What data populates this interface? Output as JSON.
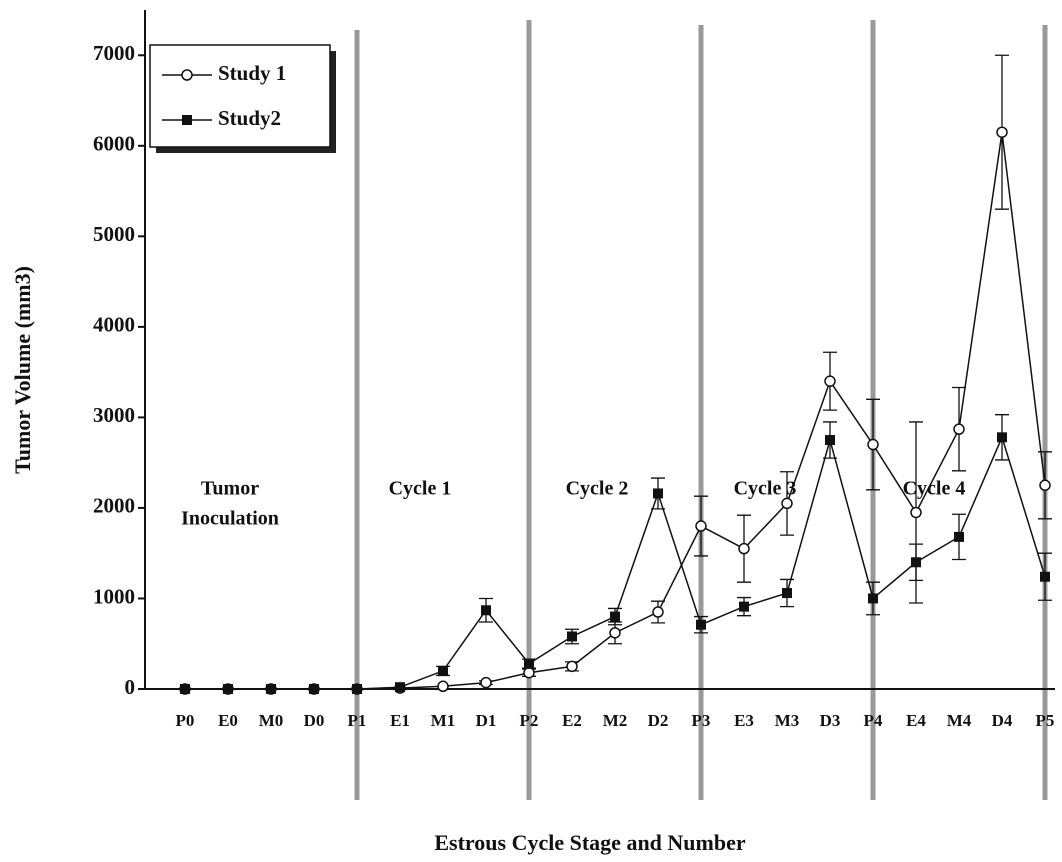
{
  "chart_data": {
    "type": "line",
    "x_label": "Estrous Cycle Stage and Number",
    "y_label": "Tumor Volume (mm3)",
    "categories": [
      "P0",
      "E0",
      "M0",
      "D0",
      "P1",
      "E1",
      "M1",
      "D1",
      "P2",
      "E2",
      "M2",
      "D2",
      "P3",
      "E3",
      "M3",
      "D3",
      "P4",
      "E4",
      "M4",
      "D4",
      "P5"
    ],
    "series": [
      {
        "name": "Study 1",
        "color": "#111111",
        "marker": "open-circle",
        "values": [
          0,
          0,
          0,
          0,
          0,
          10,
          30,
          70,
          180,
          250,
          620,
          850,
          1800,
          1550,
          2050,
          3400,
          2700,
          1950,
          2870,
          6150,
          2250
        ],
        "errors": [
          null,
          null,
          null,
          null,
          null,
          null,
          null,
          20,
          40,
          50,
          120,
          120,
          330,
          370,
          350,
          320,
          500,
          1000,
          460,
          850,
          370
        ]
      },
      {
        "name": "Study2",
        "color": "#111111",
        "marker": "filled-square",
        "values": [
          0,
          0,
          0,
          0,
          0,
          20,
          200,
          870,
          280,
          580,
          800,
          2160,
          710,
          910,
          1060,
          2750,
          1000,
          1400,
          1680,
          2780,
          1240
        ],
        "errors": [
          null,
          null,
          null,
          null,
          null,
          null,
          50,
          130,
          50,
          80,
          90,
          170,
          90,
          100,
          150,
          200,
          180,
          200,
          250,
          250,
          260
        ]
      }
    ],
    "annotations": [
      [
        "Tumor",
        "Inoculation"
      ],
      [
        "Cycle 1"
      ],
      [
        "Cycle 2"
      ],
      [
        "Cycle 3"
      ],
      [
        "Cycle 4"
      ]
    ],
    "ylim": [
      0,
      7500
    ],
    "yticks": [
      0,
      1000,
      2000,
      3000,
      4000,
      5000,
      6000,
      7000
    ],
    "grid": false,
    "legend": "top-left"
  }
}
